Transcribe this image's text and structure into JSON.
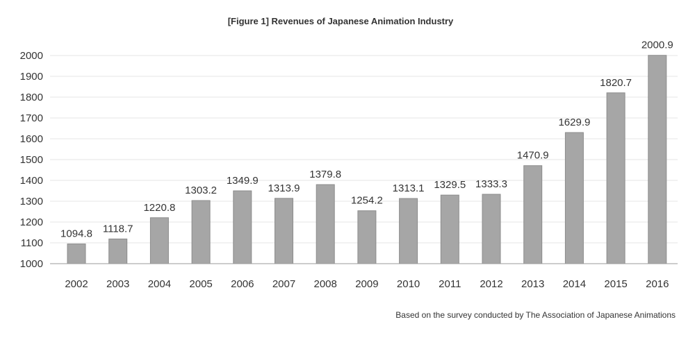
{
  "chart_data": {
    "type": "bar",
    "title": "[Figure 1] Revenues of Japanese Animation Industry",
    "footnote": "Based on the survey conducted by The Association of Japanese Animations",
    "xlabel": "",
    "ylabel": "",
    "categories": [
      "2002",
      "2003",
      "2004",
      "2005",
      "2006",
      "2007",
      "2008",
      "2009",
      "2010",
      "2011",
      "2012",
      "2013",
      "2014",
      "2015",
      "2016"
    ],
    "values": [
      1094.8,
      1118.7,
      1220.8,
      1303.2,
      1349.9,
      1313.9,
      1379.8,
      1254.2,
      1313.1,
      1329.5,
      1333.3,
      1470.9,
      1629.9,
      1820.7,
      2000.9
    ],
    "value_labels": [
      "1094.8",
      "1118.7",
      "1220.8",
      "1303.2",
      "1349.9",
      "1313.9",
      "1379.8",
      "1254.2",
      "1313.1",
      "1329.5",
      "1333.3",
      "1470.9",
      "1629.9",
      "1820.7",
      "2000.9"
    ],
    "ylim": [
      1000,
      2000
    ],
    "yticks": [
      "1000",
      "1100",
      "1200",
      "1300",
      "1400",
      "1500",
      "1600",
      "1700",
      "1800",
      "1900",
      "2000"
    ],
    "grid": true,
    "legend": "none",
    "colors": {
      "bar_fill": "#a6a6a6",
      "bar_stroke": "#8c8c8c",
      "grid": "#e6e6e6",
      "axis": "#9a9a9a",
      "text": "#333333"
    }
  }
}
